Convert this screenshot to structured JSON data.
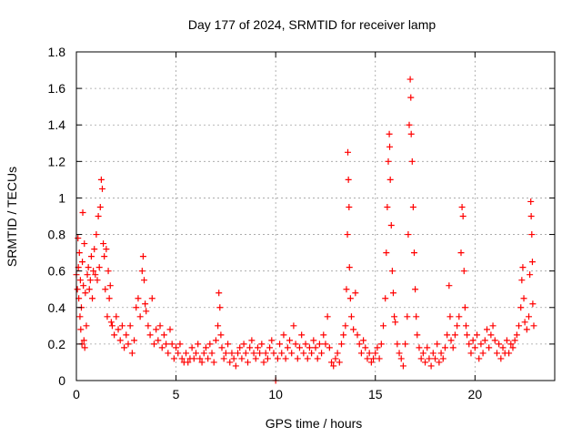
{
  "chart_data": {
    "type": "scatter",
    "title": "Day 177 of 2024, SRMTID for receiver lamp",
    "xlabel": "GPS time / hours",
    "ylabel": "SRMTID / TECUs",
    "xlim": [
      0,
      24
    ],
    "ylim": [
      0,
      1.8
    ],
    "xticks": [
      0,
      5,
      10,
      15,
      20
    ],
    "xtick_labels": [
      "0",
      "5",
      "10",
      "15",
      "20"
    ],
    "yticks": [
      0,
      0.2,
      0.4,
      0.6,
      0.8,
      1.0,
      1.2,
      1.4,
      1.6,
      1.8
    ],
    "ytick_labels": [
      "0",
      "0.2",
      "0.4",
      "0.6",
      "0.8",
      "1",
      "1.2",
      "1.4",
      "1.6",
      "1.8"
    ],
    "grid": true,
    "marker": "+",
    "color": "#ff0000",
    "series": [
      {
        "name": "SRMTID",
        "points": [
          [
            0.0,
            0.58
          ],
          [
            0.05,
            0.5
          ],
          [
            0.08,
            0.78
          ],
          [
            0.1,
            0.62
          ],
          [
            0.12,
            0.45
          ],
          [
            0.15,
            0.7
          ],
          [
            0.18,
            0.35
          ],
          [
            0.2,
            0.55
          ],
          [
            0.22,
            0.28
          ],
          [
            0.25,
            0.4
          ],
          [
            0.28,
            0.2
          ],
          [
            0.3,
            0.65
          ],
          [
            0.32,
            0.92
          ],
          [
            0.35,
            0.52
          ],
          [
            0.38,
            0.22
          ],
          [
            0.4,
            0.75
          ],
          [
            0.42,
            0.18
          ],
          [
            0.45,
            0.48
          ],
          [
            0.5,
            0.3
          ],
          [
            0.55,
            0.58
          ],
          [
            0.6,
            0.62
          ],
          [
            0.65,
            0.5
          ],
          [
            0.7,
            0.55
          ],
          [
            0.75,
            0.68
          ],
          [
            0.8,
            0.45
          ],
          [
            0.85,
            0.6
          ],
          [
            0.9,
            0.72
          ],
          [
            0.95,
            0.58
          ],
          [
            1.0,
            0.8
          ],
          [
            1.05,
            0.55
          ],
          [
            1.1,
            0.9
          ],
          [
            1.15,
            0.62
          ],
          [
            1.2,
            0.95
          ],
          [
            1.25,
            1.1
          ],
          [
            1.3,
            1.05
          ],
          [
            1.35,
            0.75
          ],
          [
            1.4,
            0.68
          ],
          [
            1.45,
            0.5
          ],
          [
            1.5,
            0.72
          ],
          [
            1.55,
            0.35
          ],
          [
            1.6,
            0.6
          ],
          [
            1.65,
            0.45
          ],
          [
            1.7,
            0.52
          ],
          [
            1.75,
            0.32
          ],
          [
            1.8,
            0.3
          ],
          [
            1.9,
            0.25
          ],
          [
            2.0,
            0.35
          ],
          [
            2.1,
            0.28
          ],
          [
            2.2,
            0.22
          ],
          [
            2.3,
            0.3
          ],
          [
            2.4,
            0.18
          ],
          [
            2.5,
            0.25
          ],
          [
            2.6,
            0.2
          ],
          [
            2.7,
            0.3
          ],
          [
            2.8,
            0.15
          ],
          [
            2.9,
            0.22
          ],
          [
            3.0,
            0.4
          ],
          [
            3.1,
            0.45
          ],
          [
            3.2,
            0.35
          ],
          [
            3.3,
            0.6
          ],
          [
            3.35,
            0.68
          ],
          [
            3.4,
            0.55
          ],
          [
            3.45,
            0.42
          ],
          [
            3.5,
            0.38
          ],
          [
            3.6,
            0.3
          ],
          [
            3.7,
            0.25
          ],
          [
            3.8,
            0.45
          ],
          [
            3.9,
            0.2
          ],
          [
            4.0,
            0.28
          ],
          [
            4.1,
            0.22
          ],
          [
            4.2,
            0.3
          ],
          [
            4.3,
            0.18
          ],
          [
            4.4,
            0.25
          ],
          [
            4.5,
            0.2
          ],
          [
            4.6,
            0.15
          ],
          [
            4.7,
            0.28
          ],
          [
            4.8,
            0.2
          ],
          [
            4.9,
            0.12
          ],
          [
            5.0,
            0.18
          ],
          [
            5.1,
            0.15
          ],
          [
            5.2,
            0.2
          ],
          [
            5.3,
            0.12
          ],
          [
            5.4,
            0.1
          ],
          [
            5.5,
            0.15
          ],
          [
            5.6,
            0.1
          ],
          [
            5.7,
            0.12
          ],
          [
            5.8,
            0.18
          ],
          [
            5.9,
            0.12
          ],
          [
            6.0,
            0.15
          ],
          [
            6.1,
            0.2
          ],
          [
            6.2,
            0.12
          ],
          [
            6.3,
            0.1
          ],
          [
            6.4,
            0.15
          ],
          [
            6.5,
            0.18
          ],
          [
            6.6,
            0.12
          ],
          [
            6.7,
            0.2
          ],
          [
            6.8,
            0.15
          ],
          [
            6.9,
            0.1
          ],
          [
            7.0,
            0.22
          ],
          [
            7.1,
            0.3
          ],
          [
            7.15,
            0.48
          ],
          [
            7.2,
            0.4
          ],
          [
            7.25,
            0.25
          ],
          [
            7.3,
            0.18
          ],
          [
            7.4,
            0.12
          ],
          [
            7.5,
            0.15
          ],
          [
            7.6,
            0.2
          ],
          [
            7.7,
            0.1
          ],
          [
            7.8,
            0.15
          ],
          [
            7.9,
            0.12
          ],
          [
            8.0,
            0.08
          ],
          [
            8.1,
            0.15
          ],
          [
            8.2,
            0.18
          ],
          [
            8.3,
            0.12
          ],
          [
            8.4,
            0.2
          ],
          [
            8.5,
            0.15
          ],
          [
            8.6,
            0.1
          ],
          [
            8.7,
            0.18
          ],
          [
            8.8,
            0.22
          ],
          [
            8.9,
            0.15
          ],
          [
            9.0,
            0.12
          ],
          [
            9.1,
            0.18
          ],
          [
            9.2,
            0.15
          ],
          [
            9.3,
            0.2
          ],
          [
            9.4,
            0.1
          ],
          [
            9.5,
            0.15
          ],
          [
            9.6,
            0.12
          ],
          [
            9.7,
            0.18
          ],
          [
            9.8,
            0.22
          ],
          [
            9.9,
            0.15
          ],
          [
            10.0,
            0.0
          ],
          [
            10.1,
            0.12
          ],
          [
            10.2,
            0.2
          ],
          [
            10.3,
            0.15
          ],
          [
            10.4,
            0.25
          ],
          [
            10.5,
            0.12
          ],
          [
            10.6,
            0.18
          ],
          [
            10.7,
            0.22
          ],
          [
            10.8,
            0.15
          ],
          [
            10.9,
            0.3
          ],
          [
            11.0,
            0.2
          ],
          [
            11.1,
            0.12
          ],
          [
            11.2,
            0.18
          ],
          [
            11.3,
            0.25
          ],
          [
            11.4,
            0.15
          ],
          [
            11.5,
            0.2
          ],
          [
            11.6,
            0.12
          ],
          [
            11.7,
            0.18
          ],
          [
            11.8,
            0.15
          ],
          [
            11.9,
            0.22
          ],
          [
            12.0,
            0.18
          ],
          [
            12.1,
            0.12
          ],
          [
            12.2,
            0.2
          ],
          [
            12.3,
            0.15
          ],
          [
            12.4,
            0.25
          ],
          [
            12.5,
            0.2
          ],
          [
            12.6,
            0.35
          ],
          [
            12.7,
            0.18
          ],
          [
            12.8,
            0.1
          ],
          [
            12.9,
            0.08
          ],
          [
            13.0,
            0.12
          ],
          [
            13.1,
            0.15
          ],
          [
            13.2,
            0.1
          ],
          [
            13.3,
            0.2
          ],
          [
            13.4,
            0.25
          ],
          [
            13.5,
            0.3
          ],
          [
            13.55,
            0.5
          ],
          [
            13.6,
            0.8
          ],
          [
            13.62,
            1.25
          ],
          [
            13.65,
            1.1
          ],
          [
            13.68,
            0.95
          ],
          [
            13.7,
            0.62
          ],
          [
            13.75,
            0.45
          ],
          [
            13.8,
            0.35
          ],
          [
            13.9,
            0.28
          ],
          [
            14.0,
            0.48
          ],
          [
            14.1,
            0.25
          ],
          [
            14.2,
            0.2
          ],
          [
            14.3,
            0.15
          ],
          [
            14.4,
            0.22
          ],
          [
            14.5,
            0.18
          ],
          [
            14.6,
            0.12
          ],
          [
            14.7,
            0.15
          ],
          [
            14.8,
            0.1
          ],
          [
            14.9,
            0.12
          ],
          [
            15.0,
            0.15
          ],
          [
            15.1,
            0.18
          ],
          [
            15.2,
            0.12
          ],
          [
            15.3,
            0.2
          ],
          [
            15.4,
            0.3
          ],
          [
            15.5,
            0.45
          ],
          [
            15.55,
            0.7
          ],
          [
            15.6,
            0.95
          ],
          [
            15.65,
            1.2
          ],
          [
            15.7,
            1.35
          ],
          [
            15.72,
            1.28
          ],
          [
            15.75,
            1.1
          ],
          [
            15.8,
            0.85
          ],
          [
            15.85,
            0.6
          ],
          [
            15.9,
            0.48
          ],
          [
            15.95,
            0.35
          ],
          [
            16.0,
            0.32
          ],
          [
            16.1,
            0.2
          ],
          [
            16.2,
            0.15
          ],
          [
            16.3,
            0.12
          ],
          [
            16.4,
            0.08
          ],
          [
            16.5,
            0.2
          ],
          [
            16.6,
            0.35
          ],
          [
            16.65,
            0.8
          ],
          [
            16.7,
            1.4
          ],
          [
            16.75,
            1.65
          ],
          [
            16.78,
            1.55
          ],
          [
            16.8,
            1.35
          ],
          [
            16.85,
            1.2
          ],
          [
            16.9,
            0.95
          ],
          [
            16.95,
            0.7
          ],
          [
            17.0,
            0.5
          ],
          [
            17.05,
            0.35
          ],
          [
            17.1,
            0.25
          ],
          [
            17.2,
            0.18
          ],
          [
            17.3,
            0.12
          ],
          [
            17.4,
            0.15
          ],
          [
            17.5,
            0.1
          ],
          [
            17.6,
            0.18
          ],
          [
            17.7,
            0.12
          ],
          [
            17.8,
            0.08
          ],
          [
            17.9,
            0.15
          ],
          [
            18.0,
            0.12
          ],
          [
            18.1,
            0.2
          ],
          [
            18.2,
            0.1
          ],
          [
            18.3,
            0.15
          ],
          [
            18.4,
            0.12
          ],
          [
            18.5,
            0.18
          ],
          [
            18.6,
            0.25
          ],
          [
            18.7,
            0.52
          ],
          [
            18.75,
            0.35
          ],
          [
            18.8,
            0.22
          ],
          [
            18.9,
            0.18
          ],
          [
            19.0,
            0.25
          ],
          [
            19.1,
            0.3
          ],
          [
            19.2,
            0.35
          ],
          [
            19.3,
            0.7
          ],
          [
            19.35,
            0.95
          ],
          [
            19.4,
            0.9
          ],
          [
            19.45,
            0.6
          ],
          [
            19.5,
            0.4
          ],
          [
            19.55,
            0.3
          ],
          [
            19.6,
            0.25
          ],
          [
            19.7,
            0.2
          ],
          [
            19.8,
            0.15
          ],
          [
            19.9,
            0.22
          ],
          [
            20.0,
            0.18
          ],
          [
            20.1,
            0.25
          ],
          [
            20.2,
            0.12
          ],
          [
            20.3,
            0.2
          ],
          [
            20.4,
            0.15
          ],
          [
            20.5,
            0.22
          ],
          [
            20.6,
            0.28
          ],
          [
            20.7,
            0.18
          ],
          [
            20.8,
            0.25
          ],
          [
            20.9,
            0.3
          ],
          [
            21.0,
            0.22
          ],
          [
            21.1,
            0.15
          ],
          [
            21.2,
            0.2
          ],
          [
            21.3,
            0.12
          ],
          [
            21.4,
            0.18
          ],
          [
            21.5,
            0.15
          ],
          [
            21.6,
            0.22
          ],
          [
            21.7,
            0.15
          ],
          [
            21.8,
            0.2
          ],
          [
            21.9,
            0.18
          ],
          [
            22.0,
            0.22
          ],
          [
            22.1,
            0.25
          ],
          [
            22.2,
            0.3
          ],
          [
            22.3,
            0.4
          ],
          [
            22.35,
            0.55
          ],
          [
            22.4,
            0.62
          ],
          [
            22.45,
            0.45
          ],
          [
            22.5,
            0.32
          ],
          [
            22.6,
            0.28
          ],
          [
            22.7,
            0.35
          ],
          [
            22.75,
            0.58
          ],
          [
            22.8,
            0.98
          ],
          [
            22.82,
            0.9
          ],
          [
            22.85,
            0.8
          ],
          [
            22.88,
            0.65
          ],
          [
            22.9,
            0.42
          ],
          [
            22.95,
            0.3
          ]
        ]
      }
    ]
  }
}
